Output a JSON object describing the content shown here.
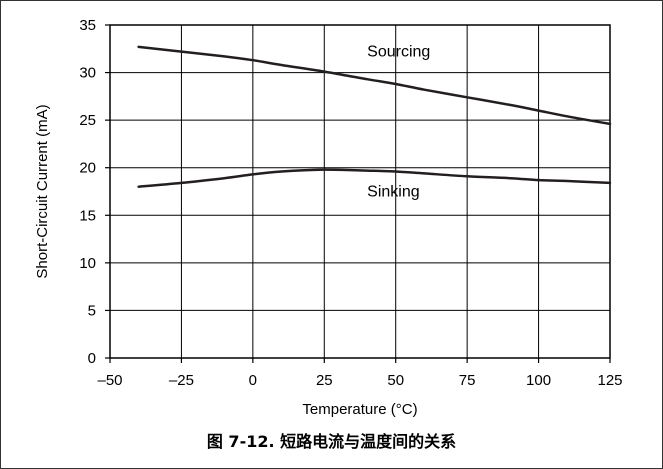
{
  "caption": "图 7-12. 短路电流与温度间的关系",
  "chart_data": {
    "type": "line",
    "xlabel": "Temperature (°C)",
    "ylabel": "Short-Circuit Current (mA)",
    "xlim": [
      -50,
      125
    ],
    "ylim": [
      0,
      35
    ],
    "x_ticks": [
      "–50",
      "–25",
      "0",
      "25",
      "50",
      "75",
      "100",
      "125"
    ],
    "y_ticks": [
      "0",
      "5",
      "10",
      "15",
      "20",
      "25",
      "30",
      "35"
    ],
    "grid": true,
    "line_color": "#231f20",
    "series": [
      {
        "name": "Sourcing",
        "x": [
          -40,
          -25,
          -10,
          0,
          10,
          25,
          40,
          50,
          60,
          75,
          90,
          100,
          110,
          125
        ],
        "y": [
          32.7,
          32.2,
          31.7,
          31.3,
          30.8,
          30.1,
          29.3,
          28.8,
          28.2,
          27.4,
          26.6,
          26.0,
          25.4,
          24.6
        ]
      },
      {
        "name": "Sinking",
        "x": [
          -40,
          -25,
          -10,
          0,
          10,
          25,
          40,
          50,
          60,
          75,
          90,
          100,
          110,
          125
        ],
        "y": [
          18.0,
          18.4,
          18.9,
          19.3,
          19.6,
          19.8,
          19.7,
          19.6,
          19.4,
          19.1,
          18.9,
          18.7,
          18.6,
          18.4
        ]
      }
    ]
  }
}
